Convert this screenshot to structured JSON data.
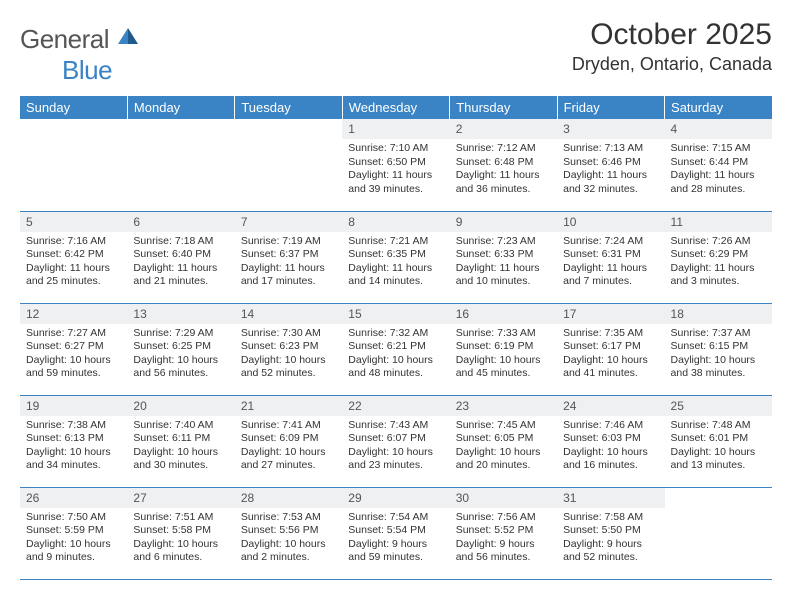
{
  "logo": {
    "word1": "General",
    "word2": "Blue"
  },
  "title": "October 2025",
  "subtitle": "Dryden, Ontario, Canada",
  "colors": {
    "header_bg": "#3a84c5",
    "header_text": "#ffffff",
    "daynum_bg": "#eef0f2",
    "border": "#3a84c5",
    "text": "#333333"
  },
  "fonts": {
    "title_pt": 30,
    "subtitle_pt": 18,
    "daynum_pt": 12,
    "body_pt": 10.5,
    "header_pt": 13
  },
  "day_names": [
    "Sunday",
    "Monday",
    "Tuesday",
    "Wednesday",
    "Thursday",
    "Friday",
    "Saturday"
  ],
  "weeks": [
    [
      null,
      null,
      null,
      {
        "n": "1",
        "sr": "7:10 AM",
        "ss": "6:50 PM",
        "dl": "11 hours and 39 minutes."
      },
      {
        "n": "2",
        "sr": "7:12 AM",
        "ss": "6:48 PM",
        "dl": "11 hours and 36 minutes."
      },
      {
        "n": "3",
        "sr": "7:13 AM",
        "ss": "6:46 PM",
        "dl": "11 hours and 32 minutes."
      },
      {
        "n": "4",
        "sr": "7:15 AM",
        "ss": "6:44 PM",
        "dl": "11 hours and 28 minutes."
      }
    ],
    [
      {
        "n": "5",
        "sr": "7:16 AM",
        "ss": "6:42 PM",
        "dl": "11 hours and 25 minutes."
      },
      {
        "n": "6",
        "sr": "7:18 AM",
        "ss": "6:40 PM",
        "dl": "11 hours and 21 minutes."
      },
      {
        "n": "7",
        "sr": "7:19 AM",
        "ss": "6:37 PM",
        "dl": "11 hours and 17 minutes."
      },
      {
        "n": "8",
        "sr": "7:21 AM",
        "ss": "6:35 PM",
        "dl": "11 hours and 14 minutes."
      },
      {
        "n": "9",
        "sr": "7:23 AM",
        "ss": "6:33 PM",
        "dl": "11 hours and 10 minutes."
      },
      {
        "n": "10",
        "sr": "7:24 AM",
        "ss": "6:31 PM",
        "dl": "11 hours and 7 minutes."
      },
      {
        "n": "11",
        "sr": "7:26 AM",
        "ss": "6:29 PM",
        "dl": "11 hours and 3 minutes."
      }
    ],
    [
      {
        "n": "12",
        "sr": "7:27 AM",
        "ss": "6:27 PM",
        "dl": "10 hours and 59 minutes."
      },
      {
        "n": "13",
        "sr": "7:29 AM",
        "ss": "6:25 PM",
        "dl": "10 hours and 56 minutes."
      },
      {
        "n": "14",
        "sr": "7:30 AM",
        "ss": "6:23 PM",
        "dl": "10 hours and 52 minutes."
      },
      {
        "n": "15",
        "sr": "7:32 AM",
        "ss": "6:21 PM",
        "dl": "10 hours and 48 minutes."
      },
      {
        "n": "16",
        "sr": "7:33 AM",
        "ss": "6:19 PM",
        "dl": "10 hours and 45 minutes."
      },
      {
        "n": "17",
        "sr": "7:35 AM",
        "ss": "6:17 PM",
        "dl": "10 hours and 41 minutes."
      },
      {
        "n": "18",
        "sr": "7:37 AM",
        "ss": "6:15 PM",
        "dl": "10 hours and 38 minutes."
      }
    ],
    [
      {
        "n": "19",
        "sr": "7:38 AM",
        "ss": "6:13 PM",
        "dl": "10 hours and 34 minutes."
      },
      {
        "n": "20",
        "sr": "7:40 AM",
        "ss": "6:11 PM",
        "dl": "10 hours and 30 minutes."
      },
      {
        "n": "21",
        "sr": "7:41 AM",
        "ss": "6:09 PM",
        "dl": "10 hours and 27 minutes."
      },
      {
        "n": "22",
        "sr": "7:43 AM",
        "ss": "6:07 PM",
        "dl": "10 hours and 23 minutes."
      },
      {
        "n": "23",
        "sr": "7:45 AM",
        "ss": "6:05 PM",
        "dl": "10 hours and 20 minutes."
      },
      {
        "n": "24",
        "sr": "7:46 AM",
        "ss": "6:03 PM",
        "dl": "10 hours and 16 minutes."
      },
      {
        "n": "25",
        "sr": "7:48 AM",
        "ss": "6:01 PM",
        "dl": "10 hours and 13 minutes."
      }
    ],
    [
      {
        "n": "26",
        "sr": "7:50 AM",
        "ss": "5:59 PM",
        "dl": "10 hours and 9 minutes."
      },
      {
        "n": "27",
        "sr": "7:51 AM",
        "ss": "5:58 PM",
        "dl": "10 hours and 6 minutes."
      },
      {
        "n": "28",
        "sr": "7:53 AM",
        "ss": "5:56 PM",
        "dl": "10 hours and 2 minutes."
      },
      {
        "n": "29",
        "sr": "7:54 AM",
        "ss": "5:54 PM",
        "dl": "9 hours and 59 minutes."
      },
      {
        "n": "30",
        "sr": "7:56 AM",
        "ss": "5:52 PM",
        "dl": "9 hours and 56 minutes."
      },
      {
        "n": "31",
        "sr": "7:58 AM",
        "ss": "5:50 PM",
        "dl": "9 hours and 52 minutes."
      },
      null
    ]
  ],
  "labels": {
    "sunrise": "Sunrise:",
    "sunset": "Sunset:",
    "daylight": "Daylight:"
  }
}
